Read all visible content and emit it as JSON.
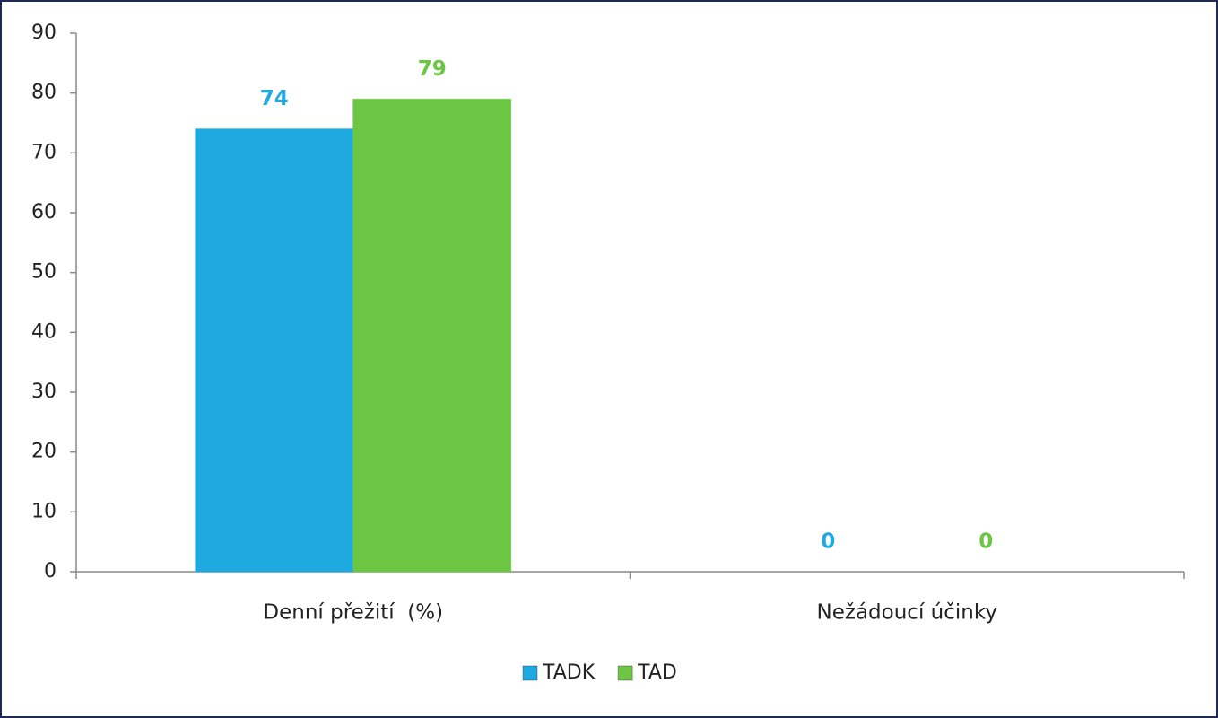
{
  "chart_data": {
    "type": "bar",
    "categories": [
      "Denní přežití  (%)",
      "Nežádoucí účinky"
    ],
    "series": [
      {
        "name": "TADK",
        "color": "#1ea9e1",
        "values": [
          74,
          0
        ]
      },
      {
        "name": "TAD",
        "color": "#6cc644",
        "values": [
          79,
          0
        ]
      }
    ],
    "ylim": [
      0,
      90
    ],
    "yticks": [
      0,
      10,
      20,
      30,
      40,
      50,
      60,
      70,
      80,
      90
    ],
    "show_value_labels": true,
    "legend": "bottom"
  }
}
